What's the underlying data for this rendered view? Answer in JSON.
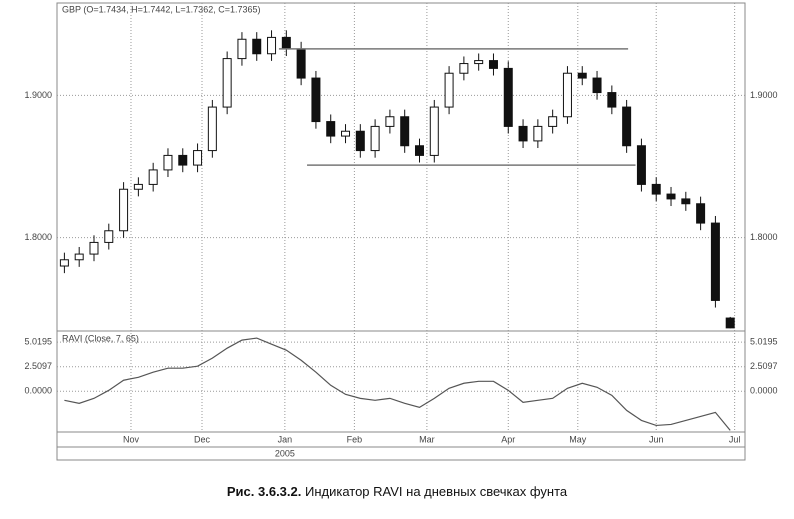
{
  "chart_data": [
    {
      "type": "candlestick",
      "title": "GBP (O=1.7434, H=1.7442, L=1.7362, C=1.7365)",
      "open": [
        1.78,
        1.7844,
        1.7884,
        1.7966,
        1.8048,
        1.834,
        1.8374,
        1.8476,
        1.8578,
        1.851,
        1.8612,
        1.8918,
        1.9259,
        1.9395,
        1.9293,
        1.9408,
        1.9327,
        1.9122,
        1.8816,
        1.8714,
        1.8748,
        1.8612,
        1.8782,
        1.885,
        1.8646,
        1.8578,
        1.8918,
        1.9156,
        1.9224,
        1.9245,
        1.919,
        1.8782,
        1.868,
        1.8782,
        1.885,
        1.9156,
        1.9122,
        1.902,
        1.8918,
        1.8646,
        1.8374,
        1.8306,
        1.8272,
        1.8238,
        1.8102,
        1.7434
      ],
      "high": [
        1.7894,
        1.7934,
        1.8016,
        1.8098,
        1.839,
        1.8424,
        1.8526,
        1.8628,
        1.8628,
        1.8662,
        1.8968,
        1.9309,
        1.9445,
        1.9445,
        1.9458,
        1.9458,
        1.9377,
        1.9172,
        1.8866,
        1.8798,
        1.8798,
        1.8832,
        1.89,
        1.89,
        1.8696,
        1.8968,
        1.9206,
        1.9274,
        1.9295,
        1.9295,
        1.924,
        1.8832,
        1.8832,
        1.89,
        1.9206,
        1.9206,
        1.9172,
        1.907,
        1.8968,
        1.8696,
        1.8424,
        1.8356,
        1.8322,
        1.8288,
        1.8152,
        1.7442
      ],
      "low": [
        1.775,
        1.7794,
        1.7834,
        1.7916,
        1.7998,
        1.829,
        1.8324,
        1.8426,
        1.846,
        1.846,
        1.8562,
        1.8868,
        1.9209,
        1.9243,
        1.9243,
        1.9277,
        1.9072,
        1.8766,
        1.8664,
        1.8664,
        1.8562,
        1.8562,
        1.8732,
        1.8596,
        1.8528,
        1.8528,
        1.8868,
        1.9106,
        1.9174,
        1.914,
        1.8732,
        1.863,
        1.863,
        1.8732,
        1.88,
        1.9072,
        1.897,
        1.8868,
        1.8596,
        1.8324,
        1.8256,
        1.8222,
        1.8188,
        1.8052,
        1.7508,
        1.7362
      ],
      "close": [
        1.7844,
        1.7884,
        1.7966,
        1.8048,
        1.834,
        1.8374,
        1.8476,
        1.8578,
        1.851,
        1.8612,
        1.8918,
        1.9259,
        1.9395,
        1.9293,
        1.9408,
        1.9327,
        1.9122,
        1.8816,
        1.8714,
        1.8748,
        1.8612,
        1.8782,
        1.885,
        1.8646,
        1.8578,
        1.8918,
        1.9156,
        1.9224,
        1.9245,
        1.919,
        1.8782,
        1.868,
        1.8782,
        1.885,
        1.9156,
        1.9122,
        1.902,
        1.8918,
        1.8646,
        1.8374,
        1.8306,
        1.8272,
        1.8238,
        1.8102,
        1.7558,
        1.7365
      ],
      "levels": [
        {
          "value": 1.9327,
          "x": [
            14.5,
            38.1
          ]
        },
        {
          "value": 1.851,
          "x": [
            16.4,
            38.6
          ]
        }
      ],
      "ylim": [
        1.735,
        1.965
      ],
      "yticks": [
        {
          "value": 1.8,
          "label": "1.8000"
        },
        {
          "value": 1.9,
          "label": "1.9000"
        }
      ],
      "xlim": [
        -0.5,
        46
      ],
      "xticks": [
        {
          "value": 4.5,
          "label": "Nov"
        },
        {
          "value": 9.3,
          "label": "Dec"
        },
        {
          "value": 14.9,
          "label": "Jan"
        },
        {
          "value": 19.6,
          "label": "Feb"
        },
        {
          "value": 24.5,
          "label": "Mar"
        },
        {
          "value": 30,
          "label": "Apr"
        },
        {
          "value": 34.7,
          "label": "May"
        },
        {
          "value": 40,
          "label": "Jun"
        },
        {
          "value": 45.3,
          "label": "Jul"
        }
      ],
      "year": "2005",
      "grid": true
    },
    {
      "type": "line",
      "title": "RAVI (Close, 7, 65)",
      "values": [
        -0.92,
        -1.23,
        -0.72,
        0.1,
        1.13,
        1.43,
        1.95,
        2.36,
        2.36,
        2.56,
        3.38,
        4.4,
        5.22,
        5.43,
        4.81,
        4.2,
        3.17,
        1.95,
        0.61,
        -0.31,
        -0.72,
        -0.92,
        -0.72,
        -1.23,
        -1.64,
        -0.72,
        0.31,
        0.82,
        1.02,
        1.02,
        0.1,
        -1.13,
        -0.92,
        -0.72,
        0.31,
        0.82,
        0.41,
        -0.41,
        -1.95,
        -2.97,
        -3.48,
        -3.38,
        -2.97,
        -2.56,
        -2.15,
        -3.99
      ],
      "color": "#555555",
      "ylim": [
        -4.05,
        6.05
      ],
      "yticks": [
        {
          "value": 0,
          "label": "0.0000"
        },
        2.5097,
        5.0195
      ],
      "grid": true
    }
  ],
  "caption": {
    "label": "Рис. 3.6.3.2.",
    "text": "Индикатор RAVI на дневных свечках фунта"
  }
}
